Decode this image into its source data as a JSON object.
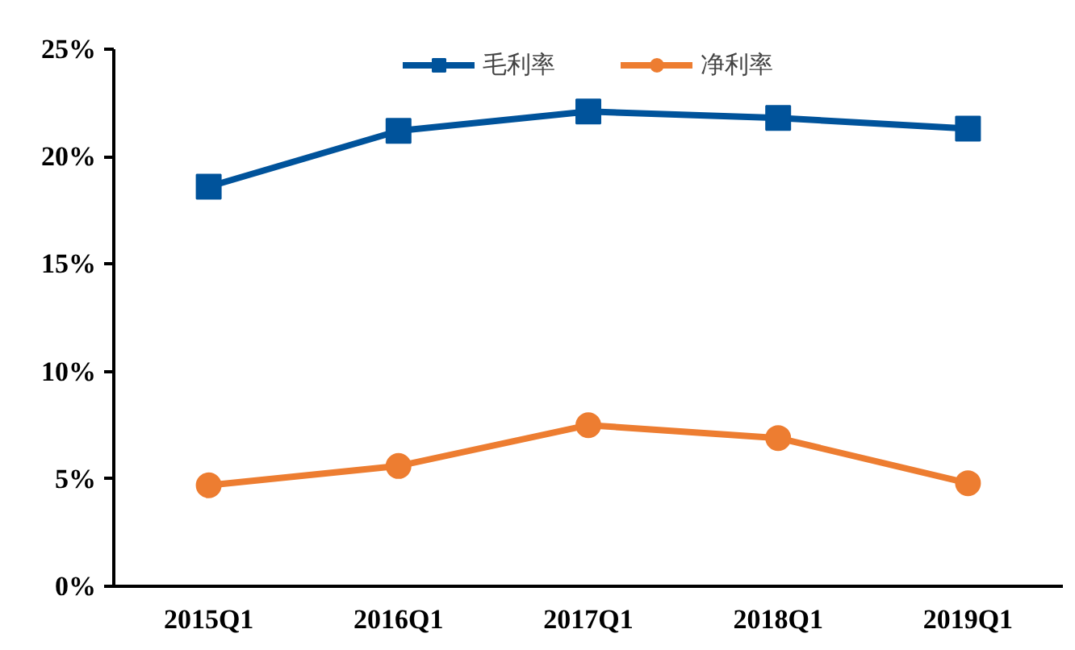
{
  "chart_data": {
    "type": "line",
    "categories": [
      "2015Q1",
      "2016Q1",
      "2017Q1",
      "2018Q1",
      "2019Q1"
    ],
    "series": [
      {
        "name": "毛利率",
        "color": "#00539b",
        "values": [
          18.6,
          21.2,
          22.1,
          21.8,
          21.3
        ],
        "marker": "square"
      },
      {
        "name": "净利率",
        "color": "#ed7d31",
        "values": [
          4.7,
          5.6,
          7.5,
          6.9,
          4.8
        ],
        "marker": "circle"
      }
    ],
    "ylim": [
      0,
      25
    ],
    "yticks": [
      {
        "value": 0,
        "label": "0%"
      },
      {
        "value": 5,
        "label": "5%"
      },
      {
        "value": 10,
        "label": "10%"
      },
      {
        "value": 15,
        "label": "15%"
      },
      {
        "value": 20,
        "label": "20%"
      },
      {
        "value": 25,
        "label": "25%"
      }
    ],
    "grid": false,
    "legend": "top",
    "line_style": "solid"
  }
}
